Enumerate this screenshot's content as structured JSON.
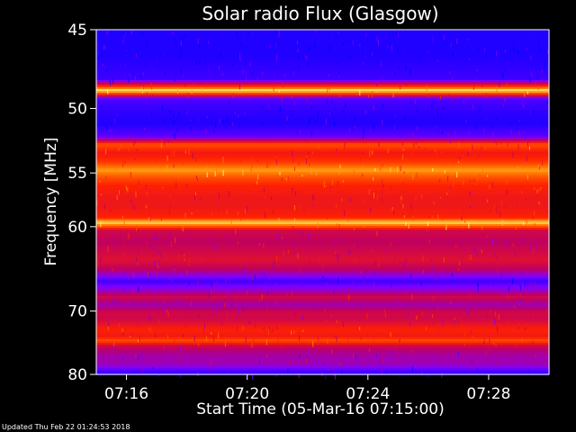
{
  "chart_data": {
    "type": "heatmap",
    "title": "Solar radio Flux (Glasgow)",
    "xlabel": "Start Time (05-Mar-16 07:15:00)",
    "ylabel": "Frequency [MHz]",
    "x_ticks": [
      "07:16",
      "07:20",
      "07:24",
      "07:28"
    ],
    "x_tick_minutes": [
      1,
      5,
      9,
      13
    ],
    "xlim_minutes": [
      0,
      15
    ],
    "y_ticks": [
      45,
      50,
      55,
      60,
      70,
      80
    ],
    "ylim": [
      45,
      80
    ],
    "y_scale": "reciprocal",
    "colormap": [
      "#0000ff",
      "#8000ff",
      "#c00060",
      "#ff2000",
      "#ff8000",
      "#ffff80"
    ],
    "frequency_profile": [
      {
        "f": 45.2,
        "level": 0.05
      },
      {
        "f": 46.5,
        "level": 0.05
      },
      {
        "f": 48.0,
        "level": 0.1
      },
      {
        "f": 48.7,
        "level": 0.98
      },
      {
        "f": 49.3,
        "level": 0.12
      },
      {
        "f": 50.0,
        "level": 0.08
      },
      {
        "f": 51.0,
        "level": 0.05
      },
      {
        "f": 52.0,
        "level": 0.15
      },
      {
        "f": 52.6,
        "level": 0.7
      },
      {
        "f": 53.3,
        "level": 0.55
      },
      {
        "f": 54.0,
        "level": 0.65
      },
      {
        "f": 54.7,
        "level": 0.85
      },
      {
        "f": 55.3,
        "level": 0.7
      },
      {
        "f": 56.0,
        "level": 0.6
      },
      {
        "f": 57.0,
        "level": 0.55
      },
      {
        "f": 58.0,
        "level": 0.55
      },
      {
        "f": 59.0,
        "level": 0.6
      },
      {
        "f": 59.5,
        "level": 0.95
      },
      {
        "f": 60.3,
        "level": 0.45
      },
      {
        "f": 61.5,
        "level": 0.4
      },
      {
        "f": 62.5,
        "level": 0.45
      },
      {
        "f": 63.5,
        "level": 0.5
      },
      {
        "f": 64.5,
        "level": 0.4
      },
      {
        "f": 65.2,
        "level": 0.25
      },
      {
        "f": 66.0,
        "level": 0.1
      },
      {
        "f": 67.0,
        "level": 0.25
      },
      {
        "f": 68.0,
        "level": 0.45
      },
      {
        "f": 69.0,
        "level": 0.3
      },
      {
        "f": 70.0,
        "level": 0.45
      },
      {
        "f": 71.0,
        "level": 0.45
      },
      {
        "f": 72.0,
        "level": 0.55
      },
      {
        "f": 72.7,
        "level": 0.6
      },
      {
        "f": 73.5,
        "level": 0.55
      },
      {
        "f": 74.2,
        "level": 0.7
      },
      {
        "f": 75.0,
        "level": 0.45
      },
      {
        "f": 76.0,
        "level": 0.35
      },
      {
        "f": 77.0,
        "level": 0.3
      },
      {
        "f": 78.0,
        "level": 0.3
      },
      {
        "f": 79.0,
        "level": 0.15
      },
      {
        "f": 80.0,
        "level": 0.05
      }
    ]
  },
  "footer": {
    "updated": "Updated Thu Feb 22 01:24:53 2018"
  }
}
